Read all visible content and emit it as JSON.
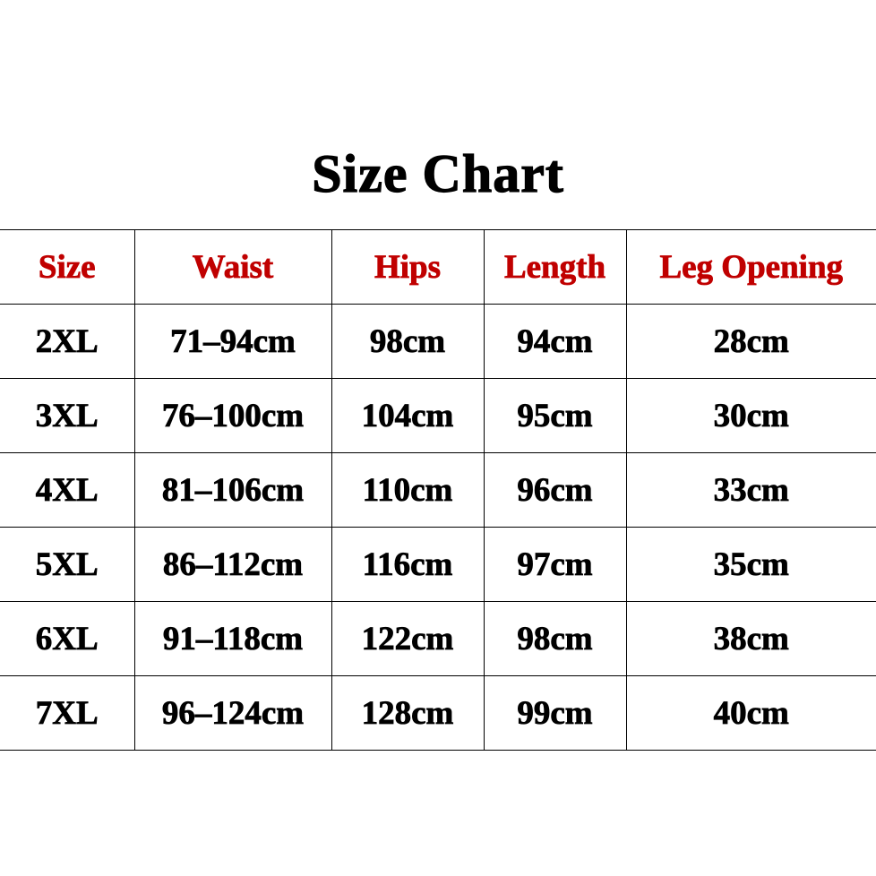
{
  "title": "Size Chart",
  "header_color": "#c00000",
  "table": {
    "headers": [
      "Size",
      "Waist",
      "Hips",
      "Length",
      "Leg Opening"
    ],
    "rows": [
      [
        "2XL",
        "71–94cm",
        "98cm",
        "94cm",
        "28cm"
      ],
      [
        "3XL",
        "76–100cm",
        "104cm",
        "95cm",
        "30cm"
      ],
      [
        "4XL",
        "81–106cm",
        "110cm",
        "96cm",
        "33cm"
      ],
      [
        "5XL",
        "86–112cm",
        "116cm",
        "97cm",
        "35cm"
      ],
      [
        "6XL",
        "91–118cm",
        "122cm",
        "98cm",
        "38cm"
      ],
      [
        "7XL",
        "96–124cm",
        "128cm",
        "99cm",
        "40cm"
      ]
    ]
  }
}
